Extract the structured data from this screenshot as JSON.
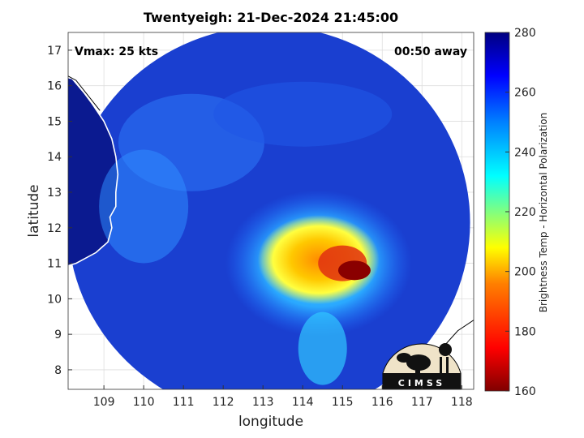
{
  "title": "Twentyeigh: 21-Dec-2024 21:45:00",
  "xlabel": "longitude",
  "ylabel": "latitude",
  "vmax_label": "Vmax: 25 kts",
  "away_label": "00:50 away",
  "logo_text": "CIMSS",
  "map": {
    "lon_range": [
      108.1,
      118.3
    ],
    "lat_range": [
      7.45,
      17.5
    ],
    "lon_ticks": [
      109,
      110,
      111,
      112,
      113,
      114,
      115,
      116,
      117,
      118
    ],
    "lat_ticks": [
      8,
      9,
      10,
      11,
      12,
      13,
      14,
      15,
      16,
      17
    ],
    "grid": true,
    "swath_center": [
      113.15,
      12.15
    ],
    "storm_center": [
      115.3,
      10.8
    ]
  },
  "colorbar": {
    "label": "Brightness Temp - Horizontal Polarization",
    "range": [
      160,
      280
    ],
    "ticks": [
      160,
      180,
      200,
      220,
      240,
      260,
      280
    ],
    "colormap": "jet",
    "colors": [
      "#800000",
      "#ff0000",
      "#ff8000",
      "#ffff00",
      "#80ff80",
      "#00ffff",
      "#0080ff",
      "#0000ff",
      "#000080"
    ]
  },
  "colors": {
    "background_ocean": "#1e3ccc",
    "land_cold": "#0a1a8c",
    "coastline": "#ffffff"
  }
}
